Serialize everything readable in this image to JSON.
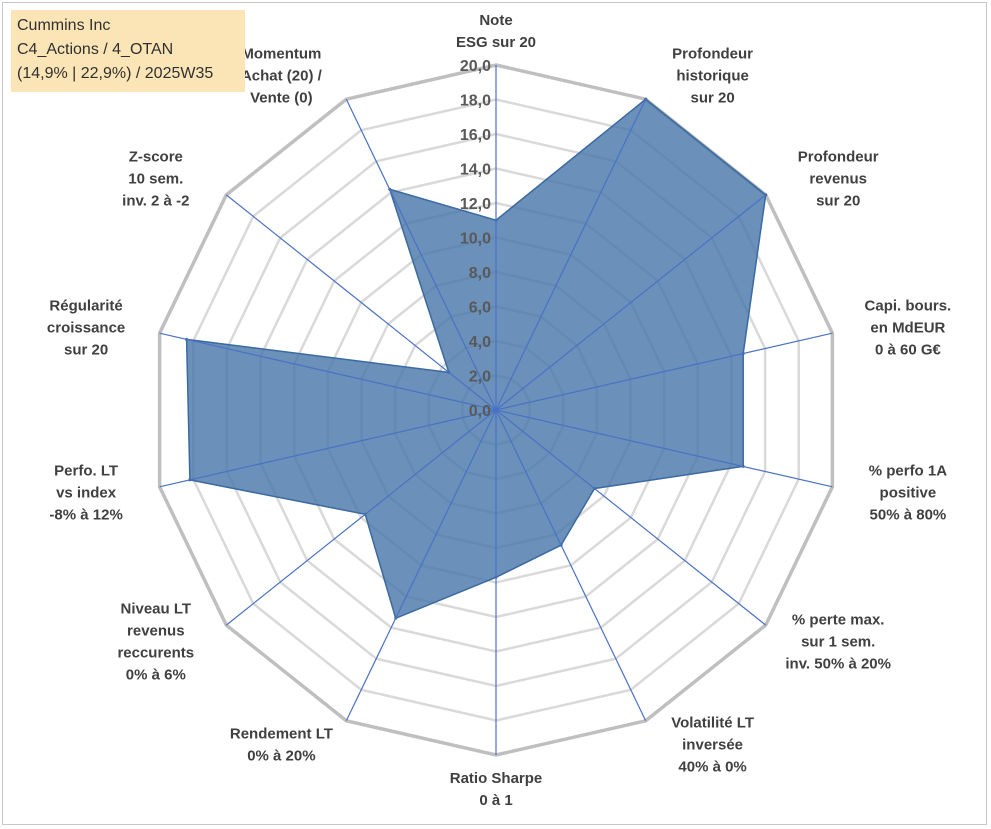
{
  "info_box": {
    "line1": "Cummins Inc",
    "line2": "C4_Actions / 4_OTAN",
    "line3": "(14,9% | 22,9%) / 2025W35"
  },
  "chart_data": {
    "type": "radar",
    "title": "",
    "rmin": 0,
    "rmax": 20,
    "tick_step": 2,
    "tick_labels": [
      "0,0",
      "2,0",
      "4,0",
      "6,0",
      "8,0",
      "10,0",
      "12,0",
      "14,0",
      "16,0",
      "18,0",
      "20,0"
    ],
    "axes": [
      [
        "Note",
        "ESG sur 20"
      ],
      [
        "Profondeur",
        "historique",
        "sur 20"
      ],
      [
        "Profondeur",
        "revenus",
        "sur 20"
      ],
      [
        "Capi. bours.",
        "en MdEUR",
        "0 à 60 G€"
      ],
      [
        "% perfo 1A",
        "positive",
        "50% à 80%"
      ],
      [
        "% perte max.",
        "sur 1 sem.",
        "inv. 50% à 20%"
      ],
      [
        "Volatilité LT",
        "inversée",
        "40% à 0%"
      ],
      [
        "Ratio Sharpe",
        "0 à 1"
      ],
      [
        "Rendement LT",
        "0% à 20%"
      ],
      [
        "Niveau LT",
        "revenus",
        "reccurents",
        "0% à 6%"
      ],
      [
        "Perfo. LT",
        "vs index",
        "-8% à 12%"
      ],
      [
        "Régularité",
        "croissance",
        "sur 20"
      ],
      [
        "Z-score",
        "10 sem.",
        "inv. 2 à -2"
      ],
      [
        "Momentum",
        "Achat (20) /",
        "Vente (0)"
      ]
    ],
    "series": [
      {
        "values": [
          11.0,
          20.0,
          20.0,
          14.7,
          14.7,
          7.3,
          8.7,
          9.7,
          13.4,
          9.7,
          18.2,
          18.4,
          3.5,
          14.2
        ]
      }
    ],
    "grid": true,
    "colors": {
      "fill": "#4a78ab",
      "stroke": "#3a6aa0",
      "spoke": "#4a72c4",
      "outer_ring": "#bfbfbf",
      "inner_ring": "#d9d9d9"
    }
  }
}
